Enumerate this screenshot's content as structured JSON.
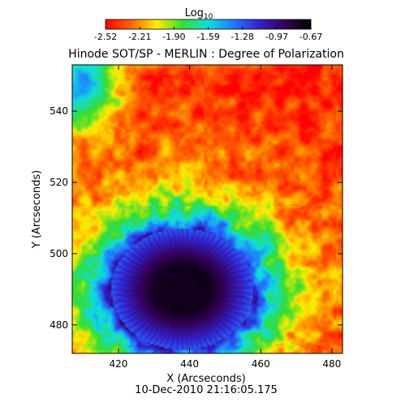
{
  "chart_data": {
    "type": "heatmap",
    "title": "Hinode SOT/SP - MERLIN : Degree of Polarization",
    "subtitle": "10-Dec-2010 21:16:05.175",
    "xlabel": "X (Arcseconds)",
    "ylabel": "Y (Arcseconds)",
    "xlim": [
      407,
      483
    ],
    "ylim": [
      472,
      553
    ],
    "x_ticks": [
      420,
      440,
      460,
      480
    ],
    "y_ticks": [
      480,
      500,
      520,
      540
    ],
    "grid": false,
    "colorbar": {
      "label_base": "Log",
      "label_sub": "10",
      "min": -2.52,
      "max": -0.67,
      "ticks": [
        "-2.52",
        "-2.21",
        "-1.90",
        "-1.59",
        "-1.28",
        "-0.97",
        "-0.67"
      ],
      "colors": [
        "#ff0000",
        "#ff6600",
        "#ffee00",
        "#33dd33",
        "#11dddd",
        "#2277ff",
        "#3322cc",
        "#330055",
        "#000000"
      ]
    },
    "field": {
      "umbra_center": [
        438,
        490
      ],
      "umbra_radius": [
        8,
        6.5
      ],
      "penumbra_radius": [
        20,
        17
      ],
      "log_dp_umbra": -0.75,
      "log_dp_penumbra": -1.2,
      "log_dp_quiet": -2.45
    }
  }
}
